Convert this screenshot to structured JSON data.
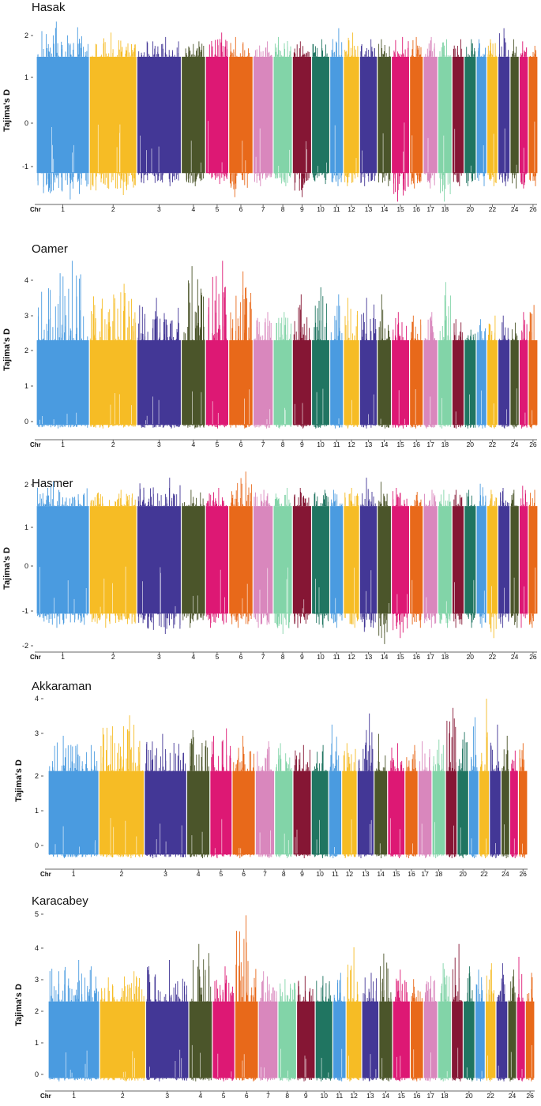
{
  "figure": {
    "y_axis_label": "Tajima's D",
    "x_axis_prefix": "Chr"
  },
  "chart_data": [
    {
      "type": "bar",
      "title": "Hasak",
      "ylabel": "Tajima's D",
      "xlabel": "Chr",
      "ylim": [
        -2.1,
        2.35
      ],
      "yticks": [
        -1,
        0,
        1,
        2
      ],
      "chromosomes": [
        "1",
        "2",
        "3",
        "4",
        "5",
        "6",
        "7",
        "8",
        "9",
        "10",
        "11",
        "12",
        "13",
        "14",
        "15",
        "16",
        "17",
        "18",
        "19",
        "20",
        "21",
        "22",
        "23",
        "24",
        "25",
        "26"
      ],
      "x_tick_labels": [
        "1",
        "2",
        "3",
        "4",
        "5",
        "6",
        "7",
        "8",
        "9",
        "10",
        "11",
        "12",
        "13",
        "14",
        "15",
        "16",
        "17",
        "18",
        "20",
        "22",
        "24",
        "26"
      ],
      "band_top": 1.5,
      "band_bottom": -1.15,
      "spike_max": [
        2.3,
        2.05,
        1.95,
        1.85,
        2.05,
        1.95,
        1.85,
        1.95,
        1.85,
        1.9,
        2.15,
        2.05,
        1.9,
        1.9,
        1.95,
        1.95,
        1.95,
        1.9,
        1.9,
        1.9,
        1.9,
        1.9,
        2.15,
        1.9,
        1.85,
        1.75
      ],
      "spike_min": [
        -1.75,
        -1.65,
        -1.45,
        -1.45,
        -1.4,
        -1.7,
        -1.45,
        -1.45,
        -1.7,
        -1.4,
        -1.45,
        -1.45,
        -1.45,
        -1.45,
        -1.8,
        -1.5,
        -1.5,
        -1.8,
        -1.45,
        -1.45,
        -1.45,
        -1.45,
        -1.45,
        -1.5,
        -1.5,
        -1.45
      ]
    },
    {
      "type": "bar",
      "title": "Oamer",
      "ylabel": "Tajima's D",
      "xlabel": "Chr",
      "ylim": [
        -0.25,
        4.7
      ],
      "yticks": [
        0,
        1,
        2,
        3,
        4
      ],
      "chromosomes": [
        "1",
        "2",
        "3",
        "4",
        "5",
        "6",
        "7",
        "8",
        "9",
        "10",
        "11",
        "12",
        "13",
        "14",
        "15",
        "16",
        "17",
        "18",
        "19",
        "20",
        "21",
        "22",
        "23",
        "24",
        "25",
        "26"
      ],
      "x_tick_labels": [
        "1",
        "2",
        "3",
        "4",
        "5",
        "6",
        "7",
        "8",
        "9",
        "10",
        "11",
        "12",
        "13",
        "14",
        "15",
        "16",
        "17",
        "18",
        "20",
        "22",
        "24",
        "26"
      ],
      "band_top": 2.3,
      "band_bottom": -0.1,
      "spike_max": [
        4.55,
        3.9,
        3.5,
        4.4,
        4.55,
        4.25,
        3.1,
        3.1,
        3.6,
        3.8,
        3.6,
        3.5,
        3.5,
        3.6,
        3.1,
        3.0,
        3.1,
        3.95,
        2.9,
        2.6,
        2.9,
        3.0,
        3.0,
        2.8,
        3.1,
        3.3
      ],
      "spike_min": [
        -0.2,
        -0.2,
        -0.2,
        -0.2,
        -0.2,
        -0.2,
        -0.2,
        -0.2,
        -0.2,
        -0.2,
        -0.2,
        -0.2,
        -0.2,
        -0.2,
        -0.2,
        -0.2,
        -0.2,
        -0.2,
        -0.2,
        -0.2,
        -0.2,
        -0.2,
        -0.2,
        -0.2,
        -0.2,
        -0.2
      ]
    },
    {
      "type": "bar",
      "title": "Hasmer",
      "ylabel": "Tajima's D",
      "xlabel": "Chr",
      "ylim": [
        -2.1,
        2.35
      ],
      "yticks": [
        -2,
        -1,
        0,
        1,
        2
      ],
      "chromosomes": [
        "1",
        "2",
        "3",
        "4",
        "5",
        "6",
        "7",
        "8",
        "9",
        "10",
        "11",
        "12",
        "13",
        "14",
        "15",
        "16",
        "17",
        "18",
        "19",
        "20",
        "21",
        "22",
        "23",
        "24",
        "25",
        "26"
      ],
      "x_tick_labels": [
        "1",
        "2",
        "3",
        "4",
        "5",
        "6",
        "7",
        "8",
        "9",
        "10",
        "11",
        "12",
        "13",
        "14",
        "15",
        "16",
        "17",
        "18",
        "20",
        "22",
        "24",
        "26"
      ],
      "band_top": 1.5,
      "band_bottom": -1.15,
      "spike_max": [
        2.1,
        1.9,
        2.2,
        1.9,
        1.95,
        2.35,
        1.9,
        1.95,
        1.95,
        1.9,
        1.9,
        1.95,
        2.2,
        2.1,
        1.95,
        1.85,
        1.9,
        1.9,
        1.9,
        1.9,
        2.05,
        1.9,
        1.95,
        1.9,
        2.0,
        1.9
      ],
      "spike_min": [
        -1.5,
        -1.5,
        -1.65,
        -1.5,
        -1.5,
        -1.5,
        -1.5,
        -1.65,
        -1.5,
        -1.5,
        -1.5,
        -1.5,
        -1.6,
        -1.9,
        -1.75,
        -1.5,
        -1.5,
        -1.5,
        -1.5,
        -1.5,
        -1.5,
        -1.75,
        -1.5,
        -1.5,
        -1.5,
        -1.5
      ]
    },
    {
      "type": "bar",
      "title": "Akkaraman",
      "ylabel": "Tajima's D",
      "xlabel": "Chr",
      "ylim": [
        -0.35,
        4.05
      ],
      "yticks": [
        0,
        1,
        2,
        3,
        4
      ],
      "chromosomes": [
        "1",
        "2",
        "3",
        "4",
        "5",
        "6",
        "7",
        "8",
        "9",
        "10",
        "11",
        "12",
        "13",
        "14",
        "15",
        "16",
        "17",
        "18",
        "19",
        "20",
        "21",
        "22",
        "23",
        "24",
        "25",
        "26"
      ],
      "x_tick_labels": [
        "1",
        "2",
        "3",
        "4",
        "5",
        "6",
        "7",
        "8",
        "9",
        "10",
        "11",
        "12",
        "13",
        "14",
        "15",
        "16",
        "17",
        "18",
        "20",
        "22",
        "24",
        "26"
      ],
      "band_top": 2.05,
      "band_bottom": -0.2,
      "spike_max": [
        3.0,
        3.55,
        3.05,
        3.15,
        3.2,
        3.0,
        2.85,
        2.8,
        2.75,
        2.75,
        3.3,
        2.8,
        3.6,
        3.05,
        2.8,
        2.75,
        2.85,
        2.9,
        3.75,
        3.1,
        3.5,
        4.0,
        3.3,
        3.0,
        2.6,
        2.8
      ],
      "spike_min": [
        -0.3,
        -0.3,
        -0.3,
        -0.3,
        -0.3,
        -0.3,
        -0.3,
        -0.3,
        -0.3,
        -0.3,
        -0.3,
        -0.3,
        -0.3,
        -0.3,
        -0.3,
        -0.3,
        -0.3,
        -0.3,
        -0.3,
        -0.3,
        -0.3,
        -0.3,
        -0.3,
        -0.3,
        -0.3,
        -0.3
      ]
    },
    {
      "type": "bar",
      "title": "Karacabey",
      "ylabel": "Tajima's D",
      "xlabel": "Chr",
      "ylim": [
        -0.25,
        5.05
      ],
      "yticks": [
        0,
        1,
        2,
        3,
        4,
        5
      ],
      "chromosomes": [
        "1",
        "2",
        "3",
        "4",
        "5",
        "6",
        "7",
        "8",
        "9",
        "10",
        "11",
        "12",
        "13",
        "14",
        "15",
        "16",
        "17",
        "18",
        "19",
        "20",
        "21",
        "22",
        "23",
        "24",
        "25",
        "26"
      ],
      "x_tick_labels": [
        "1",
        "2",
        "3",
        "4",
        "5",
        "6",
        "7",
        "8",
        "9",
        "10",
        "11",
        "12",
        "13",
        "14",
        "15",
        "16",
        "17",
        "18",
        "20",
        "22",
        "24",
        "26"
      ],
      "band_top": 2.3,
      "band_bottom": -0.1,
      "spike_max": [
        3.6,
        3.25,
        3.6,
        4.1,
        3.4,
        5.0,
        3.25,
        3.0,
        3.1,
        3.1,
        3.2,
        4.0,
        3.2,
        3.8,
        3.3,
        3.0,
        3.1,
        3.5,
        4.1,
        3.4,
        3.3,
        3.5,
        3.5,
        3.3,
        3.7,
        3.2
      ],
      "spike_min": [
        -0.2,
        -0.2,
        -0.2,
        -0.2,
        -0.2,
        -0.2,
        -0.2,
        -0.2,
        -0.2,
        -0.2,
        -0.2,
        -0.2,
        -0.2,
        -0.2,
        -0.2,
        -0.2,
        -0.2,
        -0.2,
        -0.2,
        -0.2,
        -0.2,
        -0.2,
        -0.2,
        -0.2,
        -0.2,
        -0.2
      ]
    }
  ],
  "chromosome_colors": [
    "#4a9be0",
    "#f6bc25",
    "#433796",
    "#4b552a",
    "#dd1874",
    "#e8691a",
    "#d987bd",
    "#82d4a8",
    "#851634",
    "#207561",
    "#4a9be0",
    "#f6bc25",
    "#433796",
    "#4b552a",
    "#dd1874",
    "#e8691a",
    "#d987bd",
    "#82d4a8",
    "#851634",
    "#207561",
    "#4a9be0",
    "#f6bc25",
    "#433796",
    "#4b552a",
    "#dd1874",
    "#e8691a"
  ]
}
